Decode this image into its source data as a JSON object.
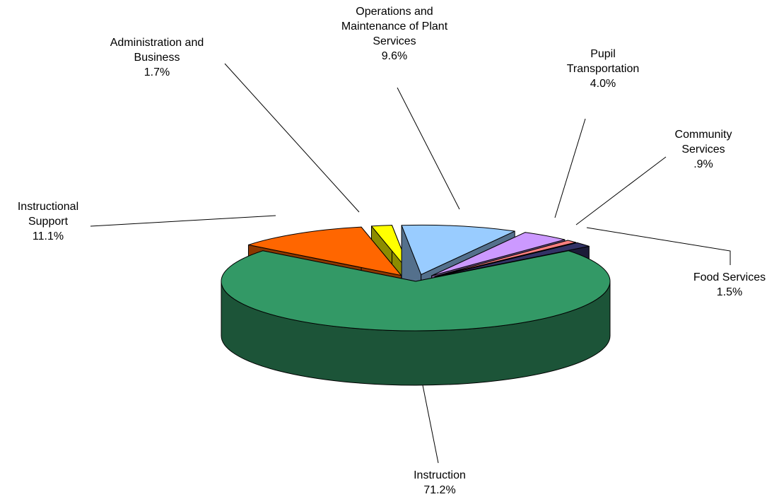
{
  "chart_data": {
    "type": "pie3d",
    "categories": [
      "Instruction",
      "Instructional Support",
      "Administration and Business",
      "Operations and Maintenance of Plant Services",
      "Pupil Transportation",
      "Community Services",
      "Food Services"
    ],
    "values": [
      71.2,
      11.1,
      1.7,
      9.6,
      4.0,
      0.9,
      1.5
    ],
    "value_labels": [
      "71.2%",
      "11.1%",
      "1.7%",
      "9.6%",
      "4.0%",
      ".9%",
      "1.5%"
    ],
    "colors": [
      "#339966",
      "#ff6600",
      "#ffff00",
      "#99ccff",
      "#cc99ff",
      "#ff8080",
      "#333366"
    ]
  }
}
